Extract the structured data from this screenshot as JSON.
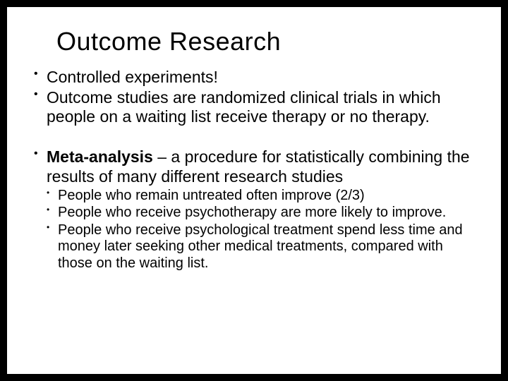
{
  "title": "Outcome Research",
  "bullets": {
    "b1": "Controlled experiments!",
    "b2": "Outcome studies are randomized clinical trials in which people on a waiting list receive therapy or no therapy.",
    "b3_bold": "Meta-analysis",
    "b3_rest": " – a procedure for statistically combining the results of many different research studies",
    "sub": {
      "s1": "People who remain untreated often improve (2/3)",
      "s2": "People who receive psychotherapy are more likely to improve.",
      "s3": "People who receive psychological treatment spend less time and money later seeking other medical treatments, compared with those on the waiting list."
    }
  }
}
